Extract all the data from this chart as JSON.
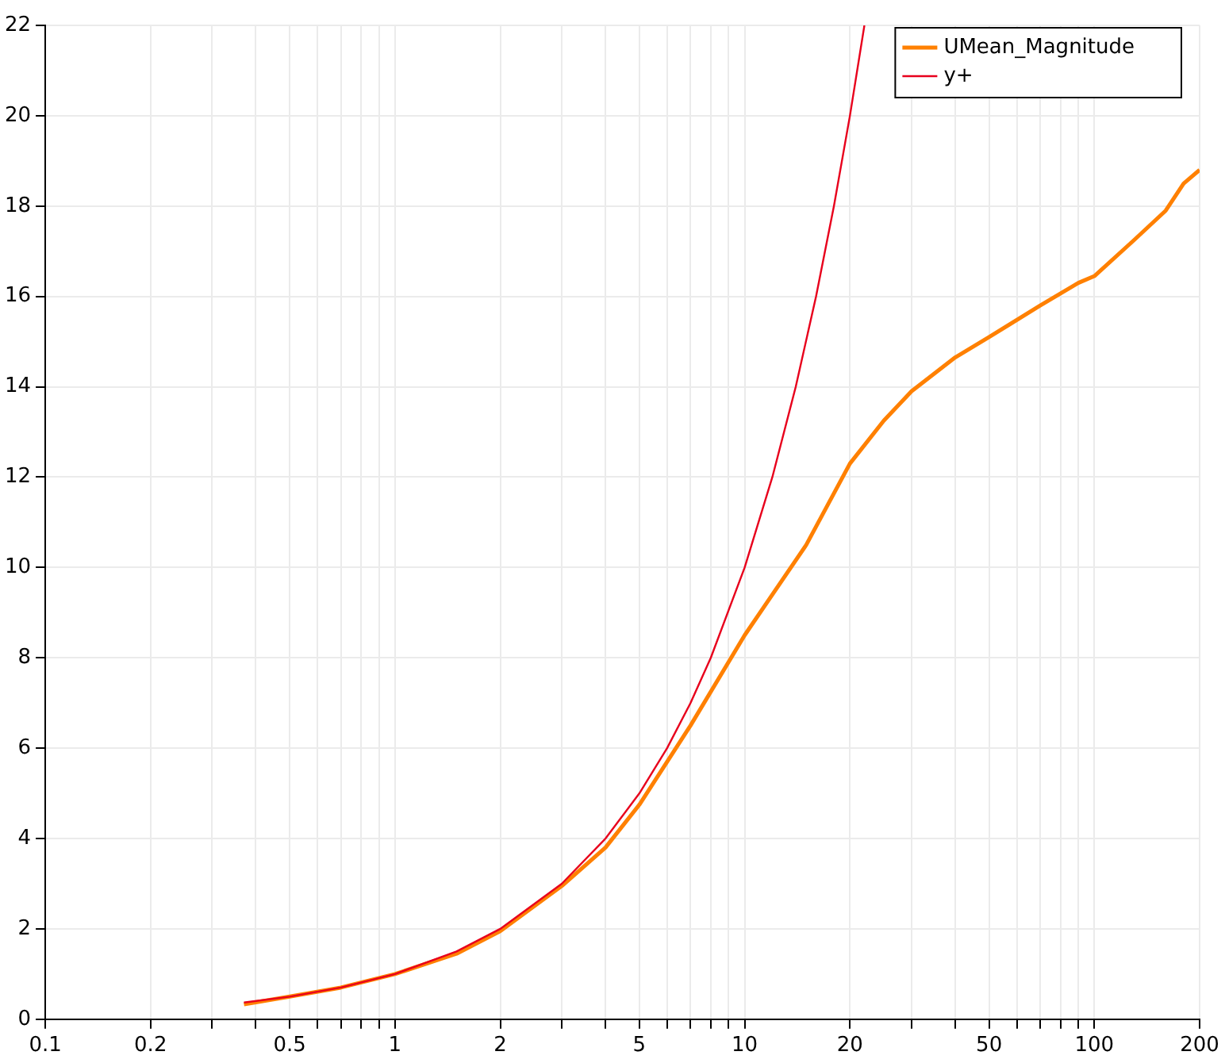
{
  "chart_data": {
    "type": "line",
    "log": "x",
    "grid": true,
    "legend": "top right",
    "marker": "none",
    "line_style": "solid",
    "xlim": [
      0.1,
      200
    ],
    "ylim": [
      0,
      22
    ],
    "xticks": [
      0.1,
      0.2,
      {
        "value": 0.3,
        "label": null
      },
      {
        "value": 0.4,
        "label": null
      },
      0.5,
      {
        "value": 0.6,
        "label": null
      },
      {
        "value": 0.7,
        "label": null
      },
      {
        "value": 0.8,
        "label": null
      },
      {
        "value": 0.9,
        "label": null
      },
      1,
      2,
      {
        "value": 3,
        "label": null
      },
      {
        "value": 4,
        "label": null
      },
      5,
      {
        "value": 6,
        "label": null
      },
      {
        "value": 7,
        "label": null
      },
      {
        "value": 8,
        "label": null
      },
      {
        "value": 9,
        "label": null
      },
      10,
      20,
      {
        "value": 30,
        "label": null
      },
      {
        "value": 40,
        "label": null
      },
      50,
      {
        "value": 60,
        "label": null
      },
      {
        "value": 70,
        "label": null
      },
      {
        "value": 80,
        "label": null
      },
      {
        "value": 90,
        "label": null
      },
      100,
      200
    ],
    "yticks": [
      0,
      2,
      4,
      6,
      8,
      10,
      12,
      14,
      16,
      18,
      20,
      22
    ],
    "series": [
      {
        "name": "UMean_Magnitude",
        "color": "#ff8000",
        "x": [
          0.37,
          0.5,
          0.7,
          1,
          1.5,
          2,
          3,
          4,
          5,
          7,
          10,
          15,
          20,
          25,
          30,
          40,
          50,
          70,
          90,
          100,
          130,
          160,
          180,
          200
        ],
        "values": [
          0.33,
          0.5,
          0.7,
          1.0,
          1.45,
          1.95,
          2.95,
          3.8,
          4.75,
          6.5,
          8.5,
          10.5,
          12.3,
          13.25,
          13.9,
          14.65,
          15.1,
          15.8,
          16.3,
          16.45,
          17.25,
          17.9,
          18.5,
          18.8
        ]
      },
      {
        "name": "y+",
        "color": "#e8001c",
        "x": [
          0.37,
          0.5,
          0.7,
          1,
          1.5,
          2,
          3,
          4,
          5,
          6,
          7,
          8,
          10,
          12,
          14,
          16,
          18,
          20,
          22
        ],
        "values": [
          0.37,
          0.5,
          0.7,
          1,
          1.5,
          2,
          3,
          4,
          5,
          6,
          7,
          8,
          10,
          12,
          14,
          16,
          18,
          20,
          22
        ]
      }
    ]
  }
}
